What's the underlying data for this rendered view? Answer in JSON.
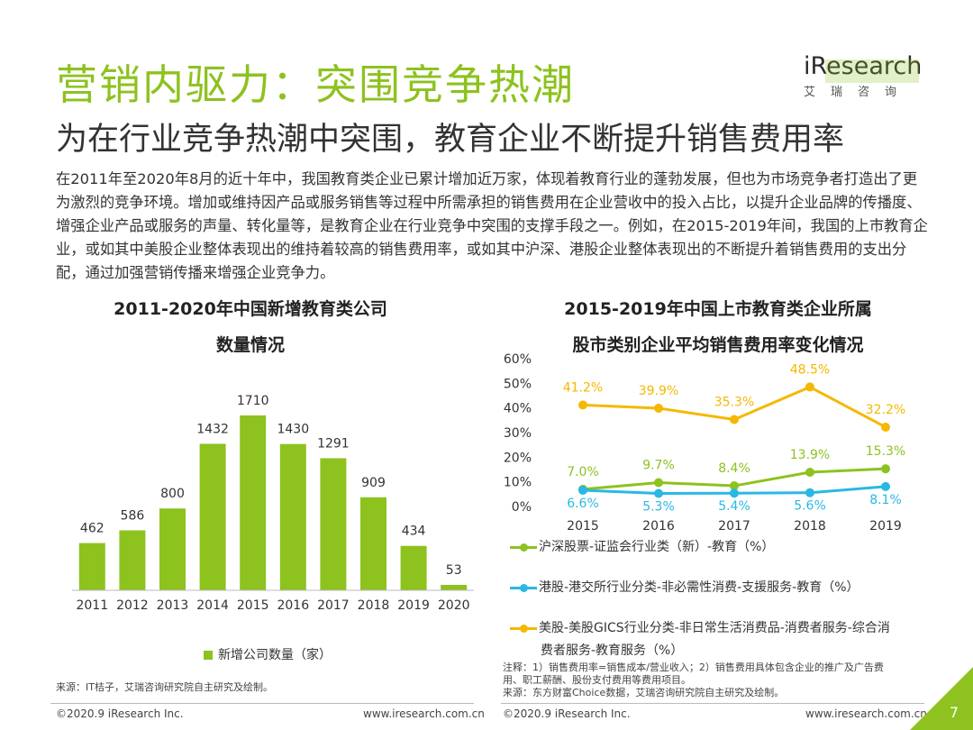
{
  "header": {
    "title": "营销内驱力：突围竞争热潮",
    "subtitle": "为在行业竞争热潮中突围，教育企业不断提升销售费用率",
    "logo_brand": "iResearch",
    "logo_cn": "艾瑞咨询"
  },
  "intro": "在2011年至2020年8月的近十年中，我国教育类企业已累计增加近万家，体现着教育行业的蓬勃发展，但也为市场竞争者打造出了更为激烈的竞争环境。增加或维持因产品或服务销售等过程中所需承担的销售费用在企业营收中的投入占比，以提升企业品牌的传播度、增强企业产品或服务的声量、转化量等，是教育企业在行业竞争中突围的支撑手段之一。例如，在2015-2019年间，我国的上市教育企业，或如其中美股企业整体表现出的维持着较高的销售费用率，或如其中沪深、港股企业整体表现出的不断提升着销售费用的支出分配，通过加强营销传播来增强企业竞争力。",
  "chart_data": [
    {
      "type": "bar",
      "title_line1": "2011-2020年中国新增教育类公司",
      "title_line2": "数量情况",
      "categories": [
        "2011",
        "2012",
        "2013",
        "2014",
        "2015",
        "2016",
        "2017",
        "2018",
        "2019",
        "2020"
      ],
      "series": [
        {
          "name": "新增公司数量（家）",
          "values": [
            462,
            586,
            800,
            1432,
            1710,
            1430,
            1291,
            909,
            434,
            53
          ]
        }
      ],
      "ylim": [
        0,
        1850
      ],
      "color": "#8dc21f",
      "legend_position": "bottom"
    },
    {
      "type": "line",
      "title_line1": "2015-2019年中国上市教育类企业所属",
      "title_line2": "股市类别企业平均销售费用率变化情况",
      "x": [
        "2015",
        "2016",
        "2017",
        "2018",
        "2019"
      ],
      "y_ticks": [
        "60%",
        "50%",
        "40%",
        "30%",
        "20%",
        "10%",
        "0%"
      ],
      "ylim": [
        0,
        60
      ],
      "series": [
        {
          "name": "沪深股票-证监会行业类（新）-教育（%）",
          "values": [
            7.0,
            9.7,
            8.4,
            13.9,
            15.3
          ],
          "labels": [
            "7.0%",
            "9.7%",
            "8.4%",
            "13.9%",
            "15.3%"
          ],
          "color": "#8dc21f"
        },
        {
          "name": "港股-港交所行业分类-非必需性消费-支援服务-教育（%）",
          "values": [
            6.6,
            5.3,
            5.4,
            5.6,
            8.1
          ],
          "labels": [
            "6.6%",
            "5.3%",
            "5.4%",
            "5.6%",
            "8.1%"
          ],
          "color": "#29b8e5"
        },
        {
          "name": "美股-美股GICS行业分类-非日常生活消费品-消费者服务-综合消费者服务-教育服务（%）",
          "values": [
            41.2,
            39.9,
            35.3,
            48.5,
            32.2
          ],
          "labels": [
            "41.2%",
            "39.9%",
            "35.3%",
            "48.5%",
            "32.2%"
          ],
          "color": "#f5b800"
        }
      ],
      "legend_position": "bottom"
    }
  ],
  "legend_line": {
    "l1": "沪深股票-证监会行业类（新）-教育（%）",
    "l2": "港股-港交所行业分类-非必需性消费-支援服务-教育（%）",
    "l3a": "美股-美股GICS行业分类-非日常生活消费品-消费者服务-综合消",
    "l3b": "费者服务-教育服务（%）"
  },
  "bar_legend": "新增公司数量（家）",
  "notes": {
    "source_left": "来源：IT桔子，艾瑞咨询研究院自主研究及绘制。",
    "note1": "注释：1）销售费用率=销售成本/营业收入；2）销售费用具体包含企业的推广及广告费",
    "note2": "用、职工薪酬、股份支付费用等费用项目。",
    "note3": "来源：东方财富Choice数据，艾瑞咨询研究院自主研究及绘制。"
  },
  "footer": {
    "copy_left": "©2020.9 iResearch Inc.",
    "url_left": "www.iresearch.com.cn",
    "copy_right": "©2020.9 iResearch Inc.",
    "url_right": "www.iresearch.com.cn",
    "page": "7"
  }
}
